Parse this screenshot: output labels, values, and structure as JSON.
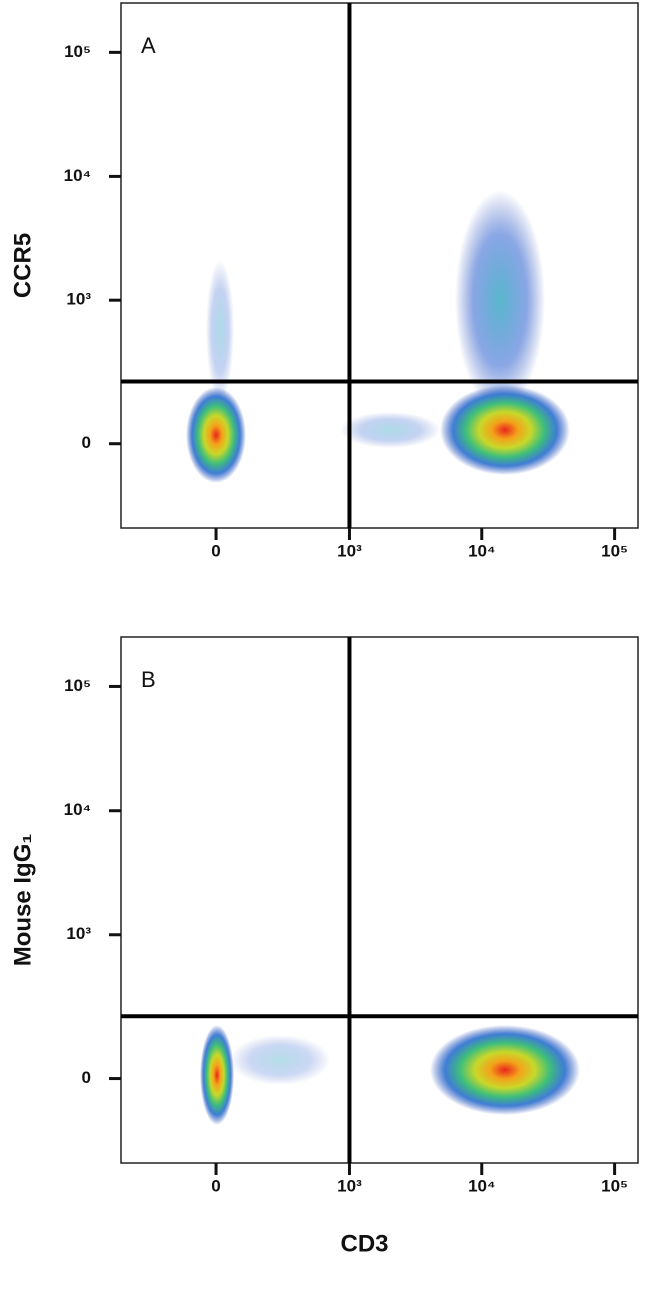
{
  "chart_data": [
    {
      "type": "scatter",
      "panel_label": "A",
      "ylabel": "CCR5",
      "scale": "biexponential",
      "xlim": [
        -500,
        150000
      ],
      "ylim": [
        -320,
        250000
      ],
      "xticks": [
        0,
        {
          "value": 1000,
          "label": "10³"
        },
        {
          "value": 10000,
          "label": "10⁴"
        },
        {
          "value": 100000,
          "label": "10⁵"
        }
      ],
      "yticks": [
        0,
        {
          "value": 1000,
          "label": "10³"
        },
        {
          "value": 10000,
          "label": "10⁴"
        },
        {
          "value": 100000,
          "label": "10⁵"
        }
      ],
      "gates": {
        "x": 1000,
        "y": 200
      }
    },
    {
      "type": "scatter",
      "panel_label": "B",
      "ylabel": "Mouse IgG₁",
      "xlabel": "CD3",
      "scale": "biexponential",
      "xlim": [
        -500,
        150000
      ],
      "ylim": [
        -320,
        250000
      ],
      "xticks": [
        0,
        {
          "value": 1000,
          "label": "10³"
        },
        {
          "value": 10000,
          "label": "10⁴"
        },
        {
          "value": 100000,
          "label": "10⁵"
        }
      ],
      "yticks": [
        0,
        {
          "value": 1000,
          "label": "10³"
        },
        {
          "value": 10000,
          "label": "10⁴"
        },
        {
          "value": 100000,
          "label": "10⁵"
        }
      ],
      "gates": {
        "x": 1000,
        "y": 200
      }
    }
  ]
}
